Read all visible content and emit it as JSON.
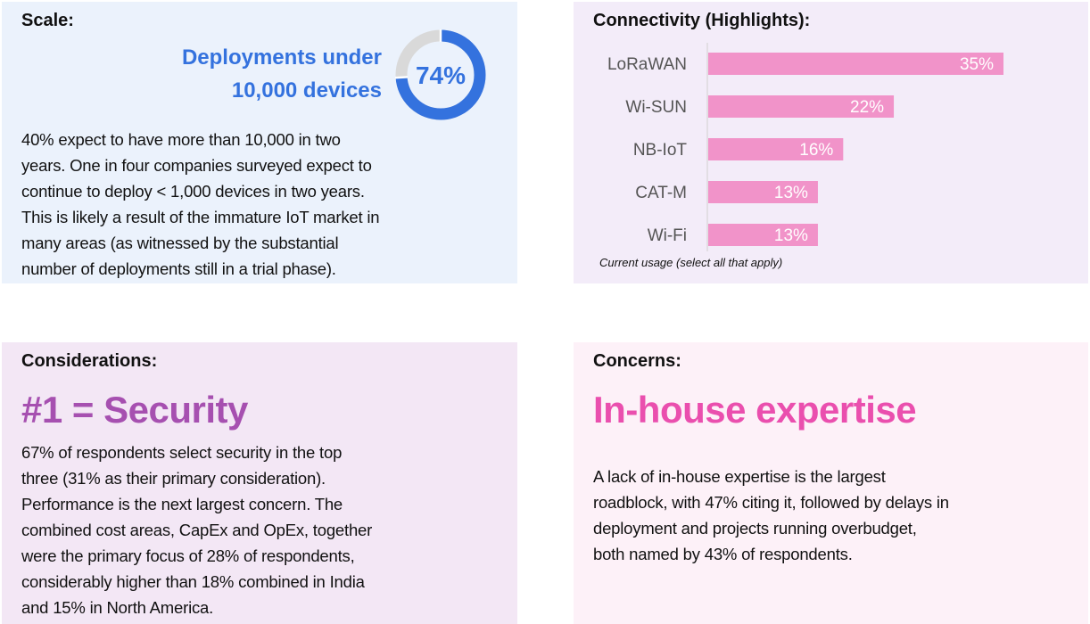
{
  "scale": {
    "title": "Scale:",
    "highlight_lines": [
      "Deployments under",
      "10,000 devices"
    ],
    "donut": {
      "value": 74,
      "label": "74%",
      "color": "#3472DE",
      "rest_color": "#D9D9D9"
    },
    "body_lines": [
      "40% expect to have more than 10,000 in two",
      "years. One in four companies surveyed expect to",
      "continue to deploy < 1,000 devices in two years.",
      "This is likely a result of the immature IoT market in",
      "many areas (as witnessed by the substantial",
      "number of deployments still in a trial phase)."
    ]
  },
  "connectivity": {
    "title": "Connectivity (Highlights):",
    "caption": "Current usage (select all that apply)"
  },
  "chart_data": {
    "type": "bar",
    "orientation": "horizontal",
    "categories": [
      "LoRaWAN",
      "Wi-SUN",
      "NB-IoT",
      "CAT-M",
      "Wi-Fi"
    ],
    "values": [
      35,
      22,
      16,
      13,
      13
    ],
    "data_labels": [
      "35%",
      "22%",
      "16%",
      "13%",
      "13%"
    ],
    "unit": "%",
    "bar_color": "#F193C9",
    "grid": false,
    "xlim": [
      0,
      35
    ]
  },
  "considerations": {
    "title": "Considerations:",
    "headline": "#1 = Security",
    "headline_color": "#A650B0",
    "body_lines": [
      "67% of respondents select security in the top",
      "three (31% as their primary consideration).",
      "Performance is the next largest concern. The",
      "combined cost areas, CapEx and OpEx, together",
      "were the primary focus of 28% of respondents,",
      "considerably higher than 18% combined in India",
      "and 15% in North America."
    ]
  },
  "concerns": {
    "title": "Concerns:",
    "headline": "In-house expertise",
    "headline_color": "#EA4FAE",
    "body_lines": [
      "A lack of in-house expertise is the largest",
      "roadblock, with 47% citing it, followed by delays in",
      "deployment  and projects running overbudget,",
      "both named by 43% of respondents."
    ]
  }
}
